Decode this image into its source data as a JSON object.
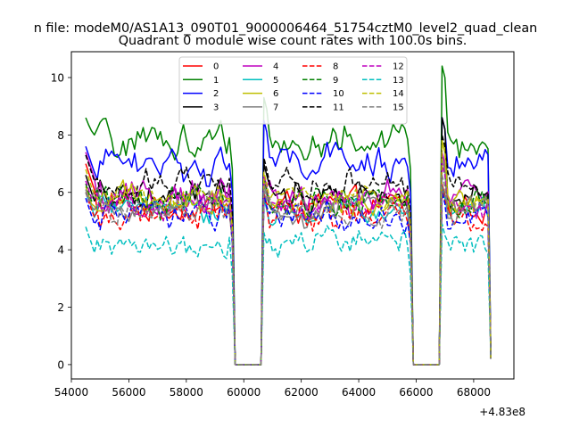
{
  "chart_data": {
    "type": "line",
    "suptitle": "n file: modeM0/AS1A13_090T01_9000006464_51754cztM0_level2_quad_clean",
    "title": "Quadrant 0 module wise count rates with 100.0s bins.",
    "xlabel": "",
    "ylabel": "",
    "x_offset_label": "+4.83e8",
    "xlim": [
      54000,
      69400
    ],
    "ylim": [
      -0.5,
      10.9
    ],
    "xticks": [
      54000,
      56000,
      58000,
      60000,
      62000,
      64000,
      66000,
      68000
    ],
    "xtick_labels": [
      "54000",
      "56000",
      "58000",
      "60000",
      "62000",
      "64000",
      "66000",
      "68000"
    ],
    "yticks": [
      0,
      2,
      4,
      6,
      8,
      10
    ],
    "ytick_labels": [
      "0",
      "2",
      "4",
      "6",
      "8",
      "10"
    ],
    "x_start": 54500,
    "x_step": 100,
    "n_points": 142,
    "segments": [
      [
        54500,
        59600
      ],
      [
        60700,
        65800
      ],
      [
        66900,
        68600
      ]
    ],
    "gaps": [
      [
        59600,
        60000,
        60600,
        60700
      ],
      [
        65800,
        65900,
        66800,
        66900
      ]
    ],
    "gap_level": 0,
    "legend_location": "upper center",
    "series": [
      {
        "name": "0",
        "color": "#ff0000",
        "dash": "solid",
        "mean": 5.5,
        "noise": 0.35,
        "peaks": [
          7.0,
          6.0,
          6.3
        ]
      },
      {
        "name": "1",
        "color": "#008000",
        "dash": "solid",
        "mean": 7.8,
        "noise": 0.45,
        "peaks": [
          8.6,
          9.3,
          10.4
        ]
      },
      {
        "name": "2",
        "color": "#0000ff",
        "dash": "solid",
        "mean": 7.0,
        "noise": 0.4,
        "peaks": [
          7.6,
          8.5,
          8.6
        ]
      },
      {
        "name": "3",
        "color": "#000000",
        "dash": "solid",
        "mean": 6.0,
        "noise": 0.35,
        "peaks": [
          6.6,
          7.0,
          8.6
        ]
      },
      {
        "name": "4",
        "color": "#bf00bf",
        "dash": "solid",
        "mean": 5.8,
        "noise": 0.4,
        "peaks": [
          7.4,
          6.6,
          7.4
        ]
      },
      {
        "name": "5",
        "color": "#00bfbf",
        "dash": "solid",
        "mean": 5.4,
        "noise": 0.3,
        "peaks": [
          6.0,
          5.8,
          6.2
        ]
      },
      {
        "name": "6",
        "color": "#bfbf00",
        "dash": "solid",
        "mean": 5.6,
        "noise": 0.35,
        "peaks": [
          6.2,
          6.4,
          7.8
        ]
      },
      {
        "name": "7",
        "color": "#808080",
        "dash": "solid",
        "mean": 5.5,
        "noise": 0.35,
        "peaks": [
          6.1,
          6.3,
          7.2
        ]
      },
      {
        "name": "8",
        "color": "#ff0000",
        "dash": "dashed",
        "mean": 5.3,
        "noise": 0.35,
        "peaks": [
          6.0,
          5.9,
          6.1
        ]
      },
      {
        "name": "9",
        "color": "#008000",
        "dash": "dashed",
        "mean": 5.7,
        "noise": 0.35,
        "peaks": [
          6.3,
          6.5,
          7.0
        ]
      },
      {
        "name": "10",
        "color": "#0000ff",
        "dash": "dashed",
        "mean": 5.2,
        "noise": 0.35,
        "peaks": [
          5.8,
          5.9,
          6.0
        ]
      },
      {
        "name": "11",
        "color": "#000000",
        "dash": "dashed",
        "mean": 6.3,
        "noise": 0.4,
        "peaks": [
          7.3,
          7.2,
          8.0
        ]
      },
      {
        "name": "12",
        "color": "#bf00bf",
        "dash": "dashed",
        "mean": 5.6,
        "noise": 0.35,
        "peaks": [
          6.4,
          6.6,
          7.0
        ]
      },
      {
        "name": "13",
        "color": "#00bfbf",
        "dash": "dashed",
        "mean": 4.1,
        "noise": 0.35,
        "peaks": [
          4.8,
          4.6,
          4.9
        ]
      },
      {
        "name": "14",
        "color": "#bfbf00",
        "dash": "dashed",
        "mean": 5.8,
        "noise": 0.35,
        "peaks": [
          6.8,
          6.7,
          7.8
        ]
      },
      {
        "name": "15",
        "color": "#808080",
        "dash": "dashed",
        "mean": 5.4,
        "noise": 0.35,
        "peaks": [
          6.0,
          6.1,
          6.6
        ]
      }
    ]
  }
}
